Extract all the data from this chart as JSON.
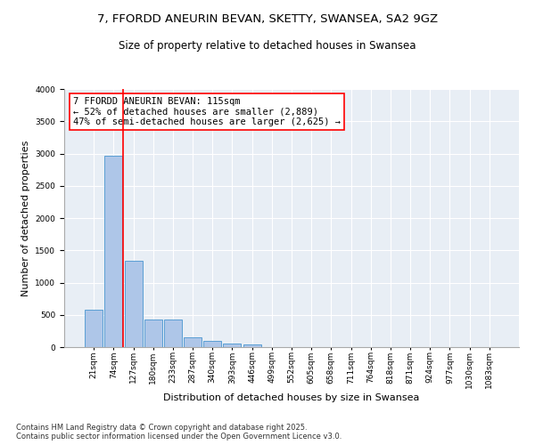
{
  "title1": "7, FFORDD ANEURIN BEVAN, SKETTY, SWANSEA, SA2 9GZ",
  "title2": "Size of property relative to detached houses in Swansea",
  "xlabel": "Distribution of detached houses by size in Swansea",
  "ylabel": "Number of detached properties",
  "categories": [
    "21sqm",
    "74sqm",
    "127sqm",
    "180sqm",
    "233sqm",
    "287sqm",
    "340sqm",
    "393sqm",
    "446sqm",
    "499sqm",
    "552sqm",
    "605sqm",
    "658sqm",
    "711sqm",
    "764sqm",
    "818sqm",
    "871sqm",
    "924sqm",
    "977sqm",
    "1030sqm",
    "1083sqm"
  ],
  "values": [
    580,
    2970,
    1340,
    430,
    430,
    150,
    90,
    55,
    40,
    0,
    0,
    0,
    0,
    0,
    0,
    0,
    0,
    0,
    0,
    0,
    0
  ],
  "bar_color": "#aec6e8",
  "bar_edge_color": "#5a9fd4",
  "vline_color": "red",
  "annotation_text": "7 FFORDD ANEURIN BEVAN: 115sqm\n← 52% of detached houses are smaller (2,889)\n47% of semi-detached houses are larger (2,625) →",
  "box_color": "white",
  "box_edge_color": "red",
  "ylim": [
    0,
    4000
  ],
  "yticks": [
    0,
    500,
    1000,
    1500,
    2000,
    2500,
    3000,
    3500,
    4000
  ],
  "background_color": "#e8eef5",
  "grid_color": "white",
  "footer": "Contains HM Land Registry data © Crown copyright and database right 2025.\nContains public sector information licensed under the Open Government Licence v3.0.",
  "title_fontsize": 9.5,
  "subtitle_fontsize": 8.5,
  "axis_label_fontsize": 8,
  "tick_fontsize": 6.5,
  "annotation_fontsize": 7.5,
  "footer_fontsize": 6.0
}
